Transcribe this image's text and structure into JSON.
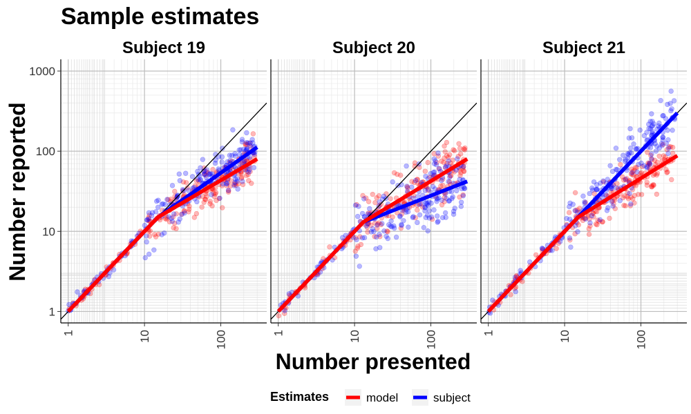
{
  "chart_data": {
    "type": "scatter",
    "title": "Sample estimates",
    "xlabel": "Number presented",
    "ylabel": "Number reported",
    "x_scale": "log10",
    "y_scale": "log10",
    "xlim": [
      0.8,
      400
    ],
    "ylim": [
      0.72,
      1400
    ],
    "x_ticks": [
      1,
      10,
      100
    ],
    "x_tick_labels": [
      "1",
      "10",
      "100"
    ],
    "y_ticks": [
      1,
      10,
      100,
      1000
    ],
    "y_tick_labels": [
      "1",
      "10",
      "100",
      "1000"
    ],
    "grid": true,
    "legend": {
      "title": "Estimates",
      "position": "bottom",
      "entries": [
        {
          "label": "model",
          "color": "#ff0000"
        },
        {
          "label": "subject",
          "color": "#0000ff"
        }
      ]
    },
    "identity_line": {
      "from": 0.8,
      "to": 400,
      "color": "#000000"
    },
    "panels": [
      {
        "strip": "Subject 19",
        "series": [
          {
            "name": "model",
            "color": "#ff0000",
            "line": [
              [
                1,
                1
              ],
              [
                15,
                15
              ],
              [
                300,
                80
              ]
            ]
          },
          {
            "name": "subject",
            "color": "#0000ff",
            "line": [
              [
                1,
                1
              ],
              [
                15,
                15
              ],
              [
                300,
                112
              ]
            ]
          }
        ],
        "scatter_spread": {
          "model": 0.13,
          "subject": 0.15
        },
        "seed": 19
      },
      {
        "strip": "Subject 20",
        "series": [
          {
            "name": "model",
            "color": "#ff0000",
            "line": [
              [
                1,
                1
              ],
              [
                13,
                13
              ],
              [
                300,
                80
              ]
            ]
          },
          {
            "name": "subject",
            "color": "#0000ff",
            "line": [
              [
                1,
                1
              ],
              [
                13,
                13
              ],
              [
                300,
                42
              ]
            ]
          }
        ],
        "scatter_spread": {
          "model": 0.16,
          "subject": 0.22
        },
        "seed": 20
      },
      {
        "strip": "Subject 21",
        "series": [
          {
            "name": "model",
            "color": "#ff0000",
            "line": [
              [
                1,
                1
              ],
              [
                15,
                15
              ],
              [
                300,
                88
              ]
            ]
          },
          {
            "name": "subject",
            "color": "#0000ff",
            "line": [
              [
                1,
                1
              ],
              [
                15,
                15
              ],
              [
                300,
                300
              ]
            ]
          }
        ],
        "scatter_spread": {
          "model": 0.13,
          "subject": 0.17
        },
        "seed": 21
      }
    ]
  }
}
